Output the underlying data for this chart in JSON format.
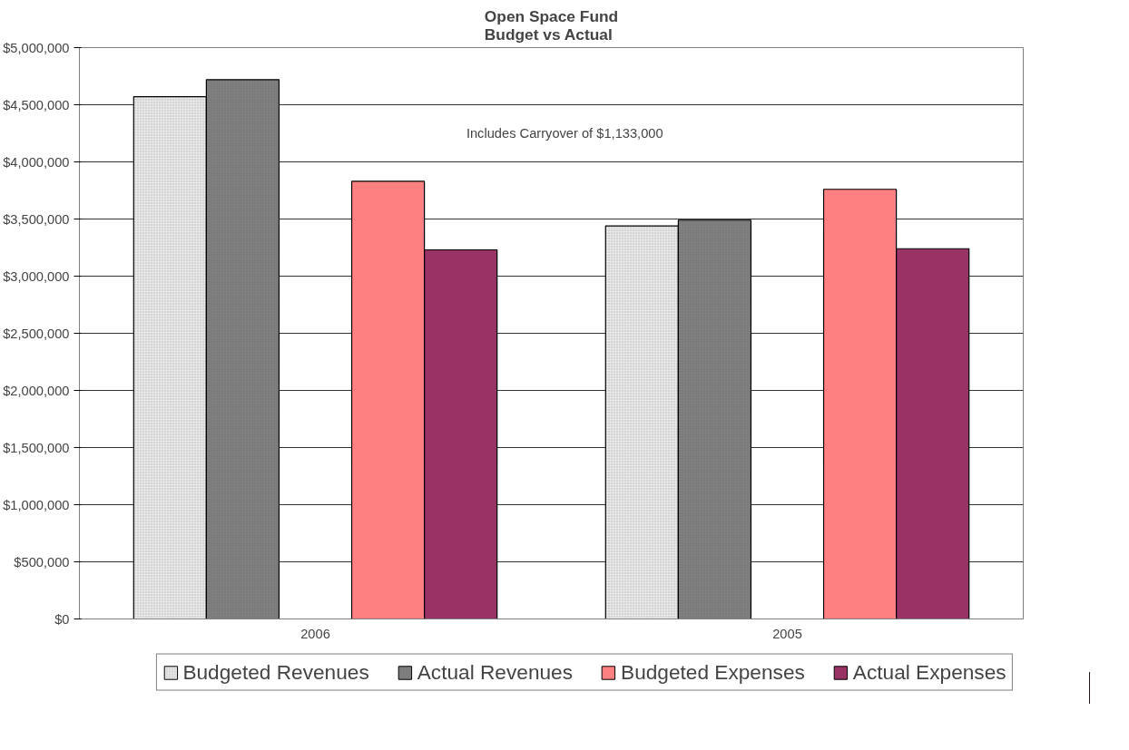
{
  "chart_data": {
    "type": "bar",
    "title": "Open Space Fund\nBudget vs Actual",
    "categories": [
      "2006",
      "2005"
    ],
    "series": [
      {
        "name": "Budgeted Revenues",
        "color": "#e8e8e8",
        "values": [
          4570000,
          3440000
        ]
      },
      {
        "name": "Actual Revenues",
        "color": "#808080",
        "values": [
          4720000,
          3490000
        ]
      },
      {
        "name": "Budgeted Expenses",
        "color": "#ff8080",
        "values": [
          3830000,
          3760000
        ]
      },
      {
        "name": "Actual Expenses",
        "color": "#993366",
        "values": [
          3230000,
          3240000
        ]
      }
    ],
    "ylim": [
      0,
      5000000
    ],
    "yticks": [
      {
        "value": 0,
        "label": "$0"
      },
      {
        "value": 500000,
        "label": "$500,000"
      },
      {
        "value": 1000000,
        "label": "$1,000,000"
      },
      {
        "value": 1500000,
        "label": "$1,500,000"
      },
      {
        "value": 2000000,
        "label": "$2,000,000"
      },
      {
        "value": 2500000,
        "label": "$2,500,000"
      },
      {
        "value": 3000000,
        "label": "$3,000,000"
      },
      {
        "value": 3500000,
        "label": "$3,500,000"
      },
      {
        "value": 4000000,
        "label": "$4,000,000"
      },
      {
        "value": 4500000,
        "label": "$4,500,000"
      },
      {
        "value": 5000000,
        "label": "$5,000,000"
      }
    ],
    "annotations": [
      "Includes Carryover of $1,133,000"
    ],
    "grid": "y",
    "legend": "bottom"
  }
}
